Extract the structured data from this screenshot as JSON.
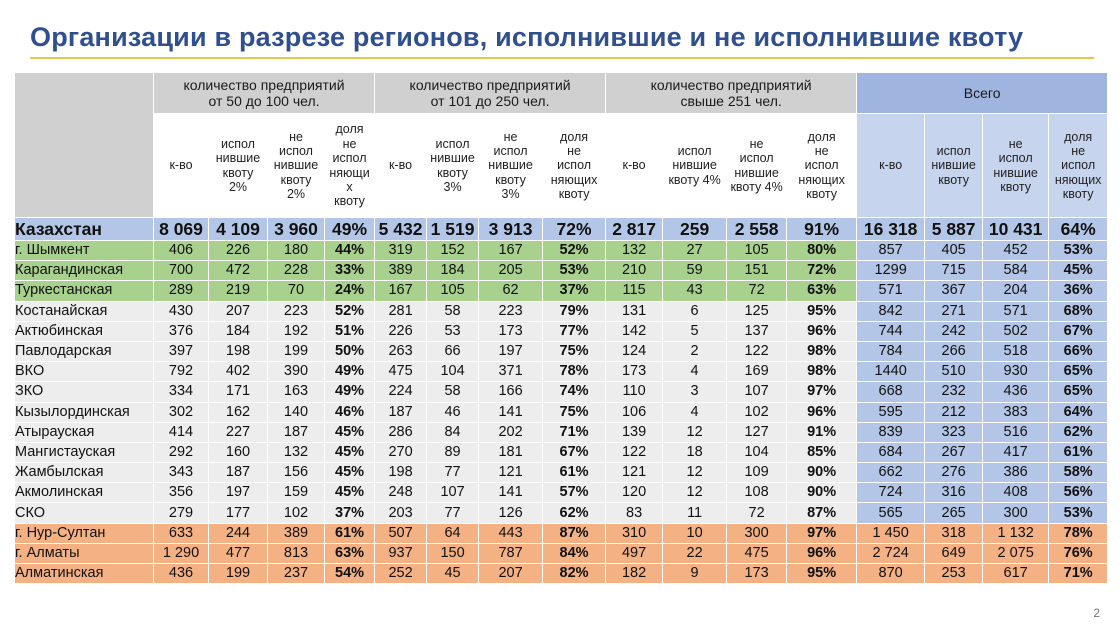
{
  "title": "Организации в разрезе регионов, исполнившие и не исполнившие квоту",
  "page_number": "2",
  "groups": [
    "количество предприятий\nот 50 до 100 чел.",
    "количество предприятий\nот 101 до 250 чел.",
    "количество предприятий\nсвыше 251 чел.",
    "Всего"
  ],
  "subheaders": [
    "к-во",
    "испол\nнившие\nквоту\n2%",
    "не\nиспол\nнившие\nквоту\n2%",
    "доля\nне\nиспол\nняющи\nх\nквоту",
    "к-во",
    "испол\nнившие\nквоту\n3%",
    "не\nиспол\nнившие\nквоту\n3%",
    "доля\nне\nиспол\nняющих\nквоту",
    "к-во",
    "испол\nнившие\nквоту 4%",
    "не\nиспол\nнившие\nквоту 4%",
    "доля\nне\nиспол\nняющих\nквоту",
    "к-во",
    "испол\nнившие\nквоту",
    "не\nиспол\nнившие\nквоту",
    "доля\nне\nиспол\nняющих\nквоту"
  ],
  "rows": [
    {
      "style": "kz",
      "cells": [
        "Казахстан",
        "8 069",
        "4 109",
        "3 960",
        "49%",
        "5 432",
        "1 519",
        "3 913",
        "72%",
        "2 817",
        "259",
        "2 558",
        "91%",
        "16 318",
        "5 887",
        "10 431",
        "64%"
      ]
    },
    {
      "style": "g",
      "cells": [
        "г. Шымкент",
        "406",
        "226",
        "180",
        "44%",
        "319",
        "152",
        "167",
        "52%",
        "132",
        "27",
        "105",
        "80%",
        "857",
        "405",
        "452",
        "53%"
      ]
    },
    {
      "style": "g",
      "cells": [
        "Карагандинская",
        "700",
        "472",
        "228",
        "33%",
        "389",
        "184",
        "205",
        "53%",
        "210",
        "59",
        "151",
        "72%",
        "1299",
        "715",
        "584",
        "45%"
      ]
    },
    {
      "style": "g",
      "cells": [
        "Туркестанская",
        "289",
        "219",
        "70",
        "24%",
        "167",
        "105",
        "62",
        "37%",
        "115",
        "43",
        "72",
        "63%",
        "571",
        "367",
        "204",
        "36%"
      ]
    },
    {
      "style": "w",
      "cells": [
        "Костанайская",
        "430",
        "207",
        "223",
        "52%",
        "281",
        "58",
        "223",
        "79%",
        "131",
        "6",
        "125",
        "95%",
        "842",
        "271",
        "571",
        "68%"
      ]
    },
    {
      "style": "w",
      "cells": [
        "Актюбинская",
        "376",
        "184",
        "192",
        "51%",
        "226",
        "53",
        "173",
        "77%",
        "142",
        "5",
        "137",
        "96%",
        "744",
        "242",
        "502",
        "67%"
      ]
    },
    {
      "style": "w",
      "cells": [
        "Павлодарская",
        "397",
        "198",
        "199",
        "50%",
        "263",
        "66",
        "197",
        "75%",
        "124",
        "2",
        "122",
        "98%",
        "784",
        "266",
        "518",
        "66%"
      ]
    },
    {
      "style": "w",
      "cells": [
        "ВКО",
        "792",
        "402",
        "390",
        "49%",
        "475",
        "104",
        "371",
        "78%",
        "173",
        "4",
        "169",
        "98%",
        "1440",
        "510",
        "930",
        "65%"
      ]
    },
    {
      "style": "w",
      "cells": [
        "ЗКО",
        "334",
        "171",
        "163",
        "49%",
        "224",
        "58",
        "166",
        "74%",
        "110",
        "3",
        "107",
        "97%",
        "668",
        "232",
        "436",
        "65%"
      ]
    },
    {
      "style": "w",
      "cells": [
        "Кызылординская",
        "302",
        "162",
        "140",
        "46%",
        "187",
        "46",
        "141",
        "75%",
        "106",
        "4",
        "102",
        "96%",
        "595",
        "212",
        "383",
        "64%"
      ]
    },
    {
      "style": "w",
      "cells": [
        "Атырауская",
        "414",
        "227",
        "187",
        "45%",
        "286",
        "84",
        "202",
        "71%",
        "139",
        "12",
        "127",
        "91%",
        "839",
        "323",
        "516",
        "62%"
      ]
    },
    {
      "style": "w",
      "cells": [
        "Мангистауская",
        "292",
        "160",
        "132",
        "45%",
        "270",
        "89",
        "181",
        "67%",
        "122",
        "18",
        "104",
        "85%",
        "684",
        "267",
        "417",
        "61%"
      ]
    },
    {
      "style": "w",
      "cells": [
        "Жамбылская",
        "343",
        "187",
        "156",
        "45%",
        "198",
        "77",
        "121",
        "61%",
        "121",
        "12",
        "109",
        "90%",
        "662",
        "276",
        "386",
        "58%"
      ]
    },
    {
      "style": "w",
      "cells": [
        "Акмолинская",
        "356",
        "197",
        "159",
        "45%",
        "248",
        "107",
        "141",
        "57%",
        "120",
        "12",
        "108",
        "90%",
        "724",
        "316",
        "408",
        "56%"
      ]
    },
    {
      "style": "w",
      "cells": [
        "СКО",
        "279",
        "177",
        "102",
        "37%",
        "203",
        "77",
        "126",
        "62%",
        "83",
        "11",
        "72",
        "87%",
        "565",
        "265",
        "300",
        "53%"
      ]
    },
    {
      "style": "o",
      "cells": [
        "г. Нур-Султан",
        "633",
        "244",
        "389",
        "61%",
        "507",
        "64",
        "443",
        "87%",
        "310",
        "10",
        "300",
        "97%",
        "1 450",
        "318",
        "1 132",
        "78%"
      ]
    },
    {
      "style": "o",
      "cells": [
        "г. Алматы",
        "1 290",
        "477",
        "813",
        "63%",
        "937",
        "150",
        "787",
        "84%",
        "497",
        "22",
        "475",
        "96%",
        "2 724",
        "649",
        "2 075",
        "76%"
      ]
    },
    {
      "style": "o",
      "cells": [
        "Алматинская",
        "436",
        "199",
        "237",
        "54%",
        "252",
        "45",
        "207",
        "82%",
        "182",
        "9",
        "173",
        "95%",
        "870",
        "253",
        "617",
        "71%"
      ]
    }
  ]
}
